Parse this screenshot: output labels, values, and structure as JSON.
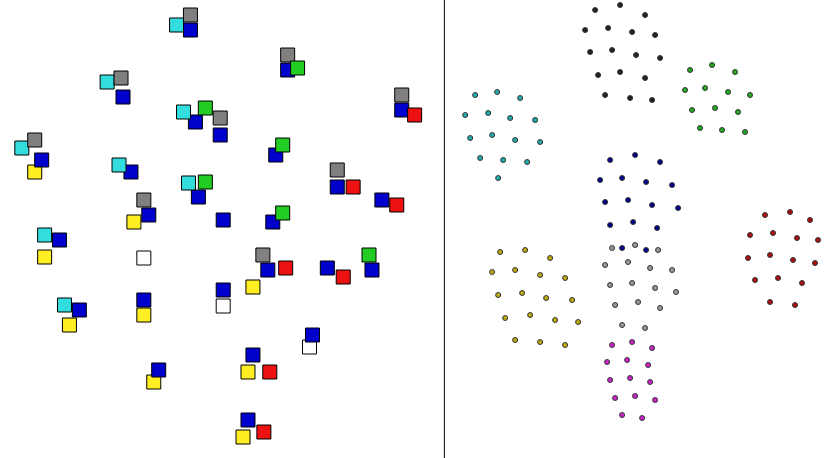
{
  "chart_data": [
    {
      "type": "scatter",
      "tick_labels": false,
      "grid": false,
      "xlim": [
        0,
        443
      ],
      "ylim": [
        458,
        0
      ],
      "xticks": [],
      "yticks": [],
      "series": [
        {
          "color": "#ffffff",
          "marker": "square",
          "x": [
            145,
            225,
            312
          ],
          "values": [
            258,
            306,
            347
          ]
        },
        {
          "color": "#ffee22",
          "marker": "square",
          "x": [
            35,
            135,
            255,
            45,
            70,
            145,
            250,
            155,
            245
          ],
          "values": [
            172,
            222,
            287,
            257,
            325,
            315,
            372,
            382,
            437
          ]
        },
        {
          "color": "#0000cc",
          "marker": "square",
          "x": [
            192,
            124,
            290,
            405,
            197,
            222,
            42,
            132,
            278,
            340,
            385,
            200,
            150,
            225,
            275,
            270,
            60,
            225,
            330,
            375,
            80,
            145,
            315,
            255,
            160,
            250
          ],
          "values": [
            30,
            97,
            70,
            110,
            122,
            135,
            160,
            172,
            155,
            187,
            200,
            197,
            215,
            220,
            222,
            270,
            240,
            290,
            268,
            270,
            310,
            300,
            335,
            355,
            370,
            420
          ]
        },
        {
          "color": "#33dddd",
          "marker": "square",
          "x": [
            178,
            108,
            185,
            22,
            120,
            190,
            45,
            65
          ],
          "values": [
            25,
            82,
            112,
            148,
            165,
            183,
            235,
            305
          ]
        },
        {
          "color": "#808080",
          "marker": "square",
          "x": [
            192,
            122,
            290,
            405,
            222,
            35,
            340,
            145,
            265
          ],
          "values": [
            15,
            78,
            55,
            95,
            118,
            140,
            170,
            200,
            255
          ]
        },
        {
          "color": "#22cc22",
          "marker": "square",
          "x": [
            300,
            207,
            285,
            207,
            285,
            372
          ],
          "values": [
            68,
            108,
            145,
            182,
            213,
            255
          ]
        },
        {
          "color": "#ee1111",
          "marker": "square",
          "x": [
            418,
            356,
            400,
            288,
            346,
            272,
            266
          ],
          "values": [
            115,
            187,
            205,
            268,
            277,
            372,
            432
          ]
        }
      ]
    },
    {
      "type": "scatter",
      "tick_labels": false,
      "grid": false,
      "xlim": [
        450,
        826
      ],
      "ylim": [
        458,
        0
      ],
      "xticks": [],
      "yticks": [],
      "series": [
        {
          "color": "#222222",
          "marker": "circle",
          "x": [
            595,
            620,
            645,
            585,
            608,
            632,
            655,
            590,
            612,
            636,
            660,
            598,
            620,
            645,
            605,
            630,
            652
          ],
          "values": [
            10,
            5,
            15,
            30,
            28,
            32,
            35,
            52,
            50,
            55,
            58,
            75,
            72,
            78,
            95,
            98,
            100
          ]
        },
        {
          "color": "#22aa22",
          "marker": "circle",
          "x": [
            690,
            712,
            735,
            685,
            705,
            728,
            750,
            692,
            715,
            738,
            700,
            722,
            745
          ],
          "values": [
            70,
            65,
            72,
            90,
            88,
            92,
            95,
            110,
            108,
            112,
            128,
            130,
            132
          ]
        },
        {
          "color": "#22aaaa",
          "marker": "circle",
          "x": [
            475,
            497,
            520,
            465,
            488,
            510,
            535,
            470,
            492,
            515,
            540,
            480,
            503,
            527,
            498
          ],
          "values": [
            95,
            92,
            98,
            115,
            113,
            118,
            120,
            138,
            135,
            140,
            142,
            158,
            160,
            162,
            178
          ]
        },
        {
          "color": "#000088",
          "marker": "circle",
          "x": [
            610,
            635,
            660,
            600,
            622,
            646,
            672,
            605,
            628,
            652,
            678,
            610,
            633,
            657,
            622,
            646
          ],
          "values": [
            160,
            155,
            162,
            180,
            178,
            182,
            185,
            202,
            200,
            205,
            208,
            225,
            222,
            228,
            248,
            250
          ]
        },
        {
          "color": "#aa1111",
          "marker": "circle",
          "x": [
            765,
            790,
            810,
            750,
            773,
            797,
            818,
            748,
            770,
            793,
            815,
            755,
            778,
            802,
            770,
            795
          ],
          "values": [
            215,
            212,
            220,
            235,
            233,
            238,
            240,
            258,
            255,
            260,
            263,
            280,
            278,
            283,
            302,
            305
          ]
        },
        {
          "color": "#bbaa11",
          "marker": "circle",
          "x": [
            500,
            525,
            550,
            492,
            515,
            540,
            565,
            498,
            522,
            546,
            572,
            505,
            530,
            555,
            578,
            515,
            540,
            565
          ],
          "values": [
            252,
            250,
            258,
            272,
            270,
            275,
            278,
            295,
            293,
            298,
            300,
            318,
            315,
            320,
            322,
            340,
            342,
            345
          ]
        },
        {
          "color": "#999999",
          "marker": "circle",
          "x": [
            612,
            635,
            658,
            605,
            628,
            650,
            672,
            610,
            632,
            655,
            676,
            615,
            638,
            660,
            622,
            645
          ],
          "values": [
            248,
            245,
            250,
            265,
            262,
            268,
            270,
            285,
            283,
            288,
            292,
            305,
            302,
            308,
            325,
            328
          ]
        },
        {
          "color": "#cc22cc",
          "marker": "circle",
          "x": [
            612,
            632,
            652,
            607,
            627,
            648,
            610,
            630,
            650,
            615,
            635,
            655,
            622,
            642
          ],
          "values": [
            345,
            342,
            348,
            362,
            360,
            365,
            380,
            378,
            382,
            398,
            396,
            400,
            415,
            418
          ]
        }
      ]
    }
  ]
}
